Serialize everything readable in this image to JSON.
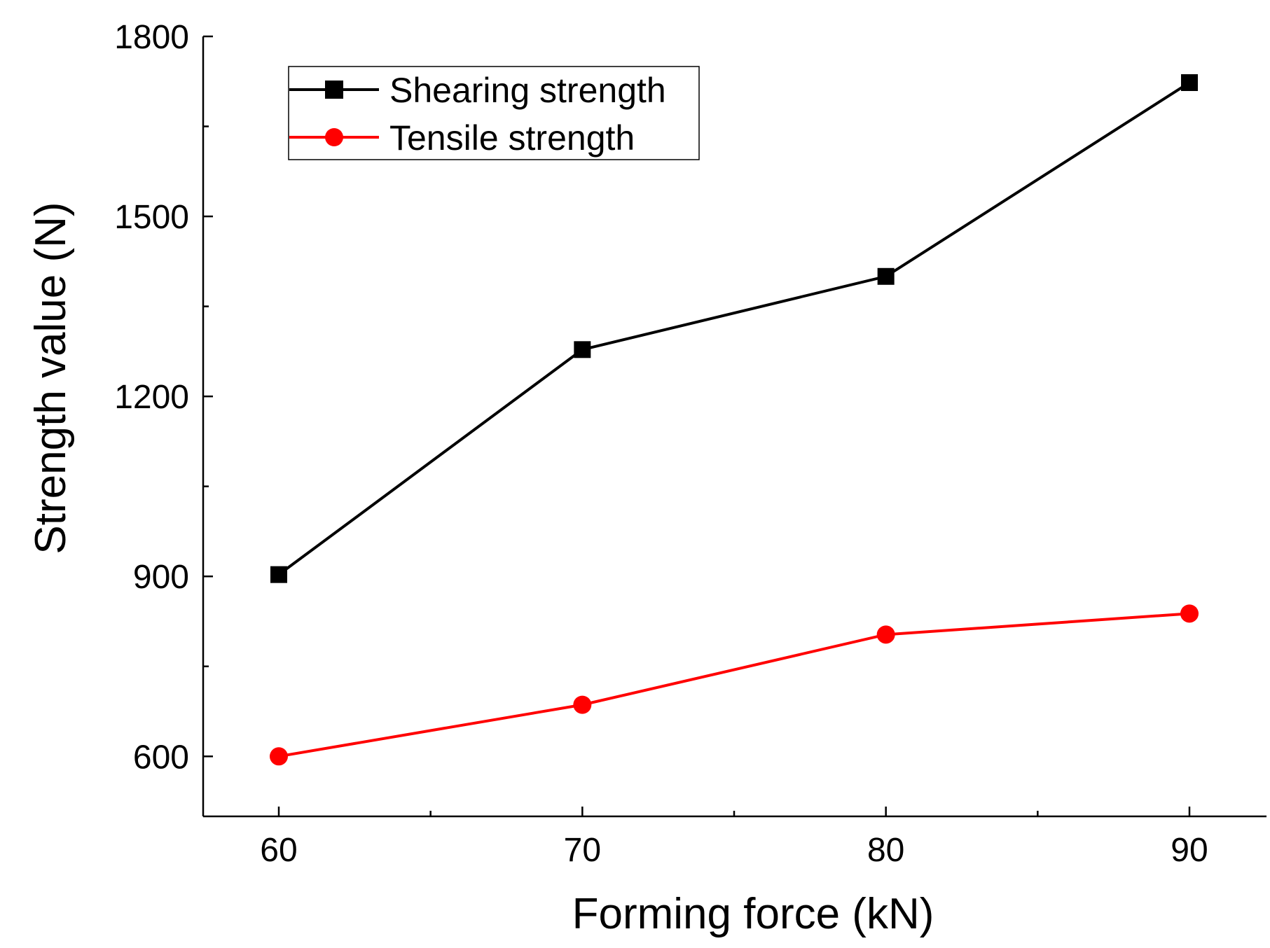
{
  "chart_data": {
    "type": "line",
    "title": "",
    "xlabel": "Forming force (kN)",
    "ylabel": "Strength value (N)",
    "x": [
      60,
      70,
      80,
      90
    ],
    "xlim": [
      57.5,
      92.5
    ],
    "ylim": [
      500,
      1800
    ],
    "xticks": [
      60,
      70,
      80,
      90
    ],
    "xtick_labels": [
      "60",
      "70",
      "80",
      "90"
    ],
    "yticks": [
      600,
      900,
      1200,
      1500,
      1800
    ],
    "ytick_labels": [
      "600",
      "900",
      "1200",
      "1500",
      "1800"
    ],
    "grid": false,
    "legend_position": "top-left",
    "series": [
      {
        "name": "Shearing strength",
        "values": [
          903,
          1278,
          1400,
          1723
        ],
        "color": "#000000",
        "marker": "square"
      },
      {
        "name": "Tensile strength",
        "values": [
          600,
          686,
          803,
          838
        ],
        "color": "#ff0000",
        "marker": "circle"
      }
    ]
  }
}
